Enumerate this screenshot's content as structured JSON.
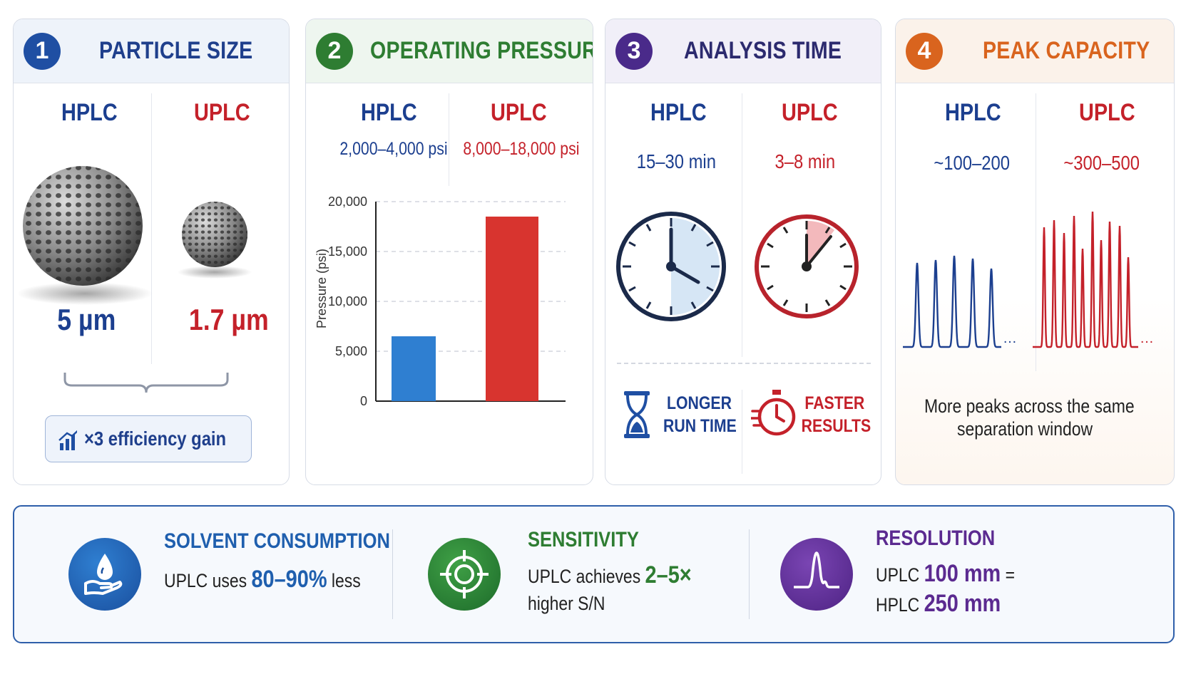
{
  "panels": [
    {
      "number": "1",
      "title": "PARTICLE SIZE",
      "color": "#1f4fa3",
      "hplc_label": "HPLC",
      "uplc_label": "UPLC",
      "hplc_value": "5 µm",
      "uplc_value": "1.7 µm",
      "gain_badge": "×3 efficiency gain",
      "icon_badge": "chart-growth-icon"
    },
    {
      "number": "2",
      "title": "OPERATING PRESSURE",
      "color": "#2e7d32",
      "hplc_label": "HPLC",
      "uplc_label": "UPLC",
      "hplc_value": "2,000–4,000 psi",
      "uplc_value": "8,000–18,000 psi"
    },
    {
      "number": "3",
      "title": "ANALYSIS TIME",
      "color": "#4a2a8a",
      "hplc_label": "HPLC",
      "uplc_label": "UPLC",
      "hplc_value": "15–30 min",
      "uplc_value": "3–8 min",
      "hplc_note_line1": "LONGER",
      "hplc_note_line2": "RUN TIME",
      "uplc_note_line1": "FASTER",
      "uplc_note_line2": "RESULTS"
    },
    {
      "number": "4",
      "title": "PEAK CAPACITY",
      "color": "#d9641e",
      "hplc_label": "HPLC",
      "uplc_label": "UPLC",
      "hplc_value": "~100–200",
      "uplc_value": "~300–500",
      "caption_line1": "More peaks across the same",
      "caption_line2": "separation window"
    }
  ],
  "chart_data": {
    "type": "bar",
    "categories": [
      "HPLC",
      "UPLC"
    ],
    "values": [
      6500,
      18500
    ],
    "ylabel": "Pressure (psi)",
    "ylim": [
      0,
      20000
    ],
    "yticks": [
      "0",
      "5,000",
      "10,000",
      "15,000",
      "20,000"
    ],
    "ytick_values": [
      0,
      5000,
      10000,
      15000,
      20000
    ],
    "colors": [
      "#2f7fd1",
      "#d8342f"
    ],
    "grid": true
  },
  "bottom": {
    "solvent": {
      "title": "SOLVENT CONSUMPTION",
      "text_pre": "UPLC uses ",
      "highlight": "80–90%",
      "text_post": " less",
      "color": "#1f5fae"
    },
    "sensitivity": {
      "title": "SENSITIVITY",
      "text_pre": "UPLC achieves ",
      "highlight": "2–5×",
      "line2": "higher S/N",
      "color": "#2e7d32"
    },
    "resolution": {
      "title": "RESOLUTION",
      "line1_pre": "UPLC ",
      "line1_value": "100 mm",
      "line1_post": " =",
      "line2_pre": "HPLC ",
      "line2_value": "250 mm",
      "color": "#5b2a90"
    }
  }
}
